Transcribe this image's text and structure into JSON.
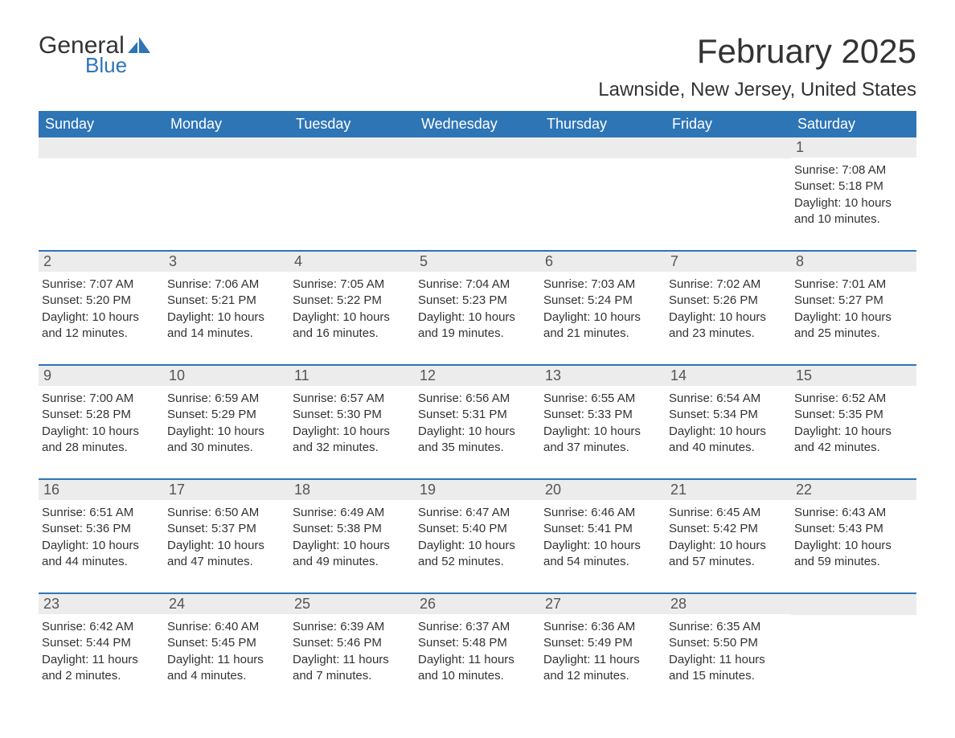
{
  "logo": {
    "general": "General",
    "blue": "Blue",
    "icon_color": "#2e75b6"
  },
  "header": {
    "month_title": "February 2025",
    "location": "Lawnside, New Jersey, United States"
  },
  "colors": {
    "header_bg": "#2e75b6",
    "header_text": "#ffffff",
    "day_number_bg": "#ececec",
    "day_number_text": "#555555",
    "body_text": "#333333",
    "row_border": "#2e75b6",
    "page_bg": "#ffffff"
  },
  "weekdays": [
    "Sunday",
    "Monday",
    "Tuesday",
    "Wednesday",
    "Thursday",
    "Friday",
    "Saturday"
  ],
  "weeks": [
    [
      null,
      null,
      null,
      null,
      null,
      null,
      {
        "n": "1",
        "sunrise": "Sunrise: 7:08 AM",
        "sunset": "Sunset: 5:18 PM",
        "daylight": "Daylight: 10 hours and 10 minutes."
      }
    ],
    [
      {
        "n": "2",
        "sunrise": "Sunrise: 7:07 AM",
        "sunset": "Sunset: 5:20 PM",
        "daylight": "Daylight: 10 hours and 12 minutes."
      },
      {
        "n": "3",
        "sunrise": "Sunrise: 7:06 AM",
        "sunset": "Sunset: 5:21 PM",
        "daylight": "Daylight: 10 hours and 14 minutes."
      },
      {
        "n": "4",
        "sunrise": "Sunrise: 7:05 AM",
        "sunset": "Sunset: 5:22 PM",
        "daylight": "Daylight: 10 hours and 16 minutes."
      },
      {
        "n": "5",
        "sunrise": "Sunrise: 7:04 AM",
        "sunset": "Sunset: 5:23 PM",
        "daylight": "Daylight: 10 hours and 19 minutes."
      },
      {
        "n": "6",
        "sunrise": "Sunrise: 7:03 AM",
        "sunset": "Sunset: 5:24 PM",
        "daylight": "Daylight: 10 hours and 21 minutes."
      },
      {
        "n": "7",
        "sunrise": "Sunrise: 7:02 AM",
        "sunset": "Sunset: 5:26 PM",
        "daylight": "Daylight: 10 hours and 23 minutes."
      },
      {
        "n": "8",
        "sunrise": "Sunrise: 7:01 AM",
        "sunset": "Sunset: 5:27 PM",
        "daylight": "Daylight: 10 hours and 25 minutes."
      }
    ],
    [
      {
        "n": "9",
        "sunrise": "Sunrise: 7:00 AM",
        "sunset": "Sunset: 5:28 PM",
        "daylight": "Daylight: 10 hours and 28 minutes."
      },
      {
        "n": "10",
        "sunrise": "Sunrise: 6:59 AM",
        "sunset": "Sunset: 5:29 PM",
        "daylight": "Daylight: 10 hours and 30 minutes."
      },
      {
        "n": "11",
        "sunrise": "Sunrise: 6:57 AM",
        "sunset": "Sunset: 5:30 PM",
        "daylight": "Daylight: 10 hours and 32 minutes."
      },
      {
        "n": "12",
        "sunrise": "Sunrise: 6:56 AM",
        "sunset": "Sunset: 5:31 PM",
        "daylight": "Daylight: 10 hours and 35 minutes."
      },
      {
        "n": "13",
        "sunrise": "Sunrise: 6:55 AM",
        "sunset": "Sunset: 5:33 PM",
        "daylight": "Daylight: 10 hours and 37 minutes."
      },
      {
        "n": "14",
        "sunrise": "Sunrise: 6:54 AM",
        "sunset": "Sunset: 5:34 PM",
        "daylight": "Daylight: 10 hours and 40 minutes."
      },
      {
        "n": "15",
        "sunrise": "Sunrise: 6:52 AM",
        "sunset": "Sunset: 5:35 PM",
        "daylight": "Daylight: 10 hours and 42 minutes."
      }
    ],
    [
      {
        "n": "16",
        "sunrise": "Sunrise: 6:51 AM",
        "sunset": "Sunset: 5:36 PM",
        "daylight": "Daylight: 10 hours and 44 minutes."
      },
      {
        "n": "17",
        "sunrise": "Sunrise: 6:50 AM",
        "sunset": "Sunset: 5:37 PM",
        "daylight": "Daylight: 10 hours and 47 minutes."
      },
      {
        "n": "18",
        "sunrise": "Sunrise: 6:49 AM",
        "sunset": "Sunset: 5:38 PM",
        "daylight": "Daylight: 10 hours and 49 minutes."
      },
      {
        "n": "19",
        "sunrise": "Sunrise: 6:47 AM",
        "sunset": "Sunset: 5:40 PM",
        "daylight": "Daylight: 10 hours and 52 minutes."
      },
      {
        "n": "20",
        "sunrise": "Sunrise: 6:46 AM",
        "sunset": "Sunset: 5:41 PM",
        "daylight": "Daylight: 10 hours and 54 minutes."
      },
      {
        "n": "21",
        "sunrise": "Sunrise: 6:45 AM",
        "sunset": "Sunset: 5:42 PM",
        "daylight": "Daylight: 10 hours and 57 minutes."
      },
      {
        "n": "22",
        "sunrise": "Sunrise: 6:43 AM",
        "sunset": "Sunset: 5:43 PM",
        "daylight": "Daylight: 10 hours and 59 minutes."
      }
    ],
    [
      {
        "n": "23",
        "sunrise": "Sunrise: 6:42 AM",
        "sunset": "Sunset: 5:44 PM",
        "daylight": "Daylight: 11 hours and 2 minutes."
      },
      {
        "n": "24",
        "sunrise": "Sunrise: 6:40 AM",
        "sunset": "Sunset: 5:45 PM",
        "daylight": "Daylight: 11 hours and 4 minutes."
      },
      {
        "n": "25",
        "sunrise": "Sunrise: 6:39 AM",
        "sunset": "Sunset: 5:46 PM",
        "daylight": "Daylight: 11 hours and 7 minutes."
      },
      {
        "n": "26",
        "sunrise": "Sunrise: 6:37 AM",
        "sunset": "Sunset: 5:48 PM",
        "daylight": "Daylight: 11 hours and 10 minutes."
      },
      {
        "n": "27",
        "sunrise": "Sunrise: 6:36 AM",
        "sunset": "Sunset: 5:49 PM",
        "daylight": "Daylight: 11 hours and 12 minutes."
      },
      {
        "n": "28",
        "sunrise": "Sunrise: 6:35 AM",
        "sunset": "Sunset: 5:50 PM",
        "daylight": "Daylight: 11 hours and 15 minutes."
      },
      null
    ]
  ]
}
